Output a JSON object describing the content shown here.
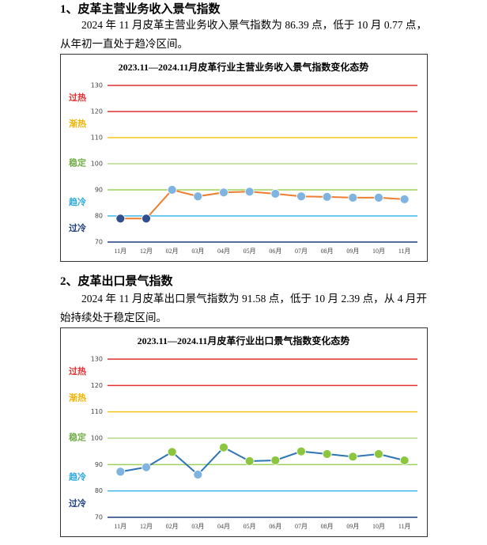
{
  "sections": [
    {
      "heading": "1、皮革主营业务收入景气指数",
      "paragraph": "2024 年 11 月皮革主营业务收入景气指数为 86.39 点，低于 10 月 0.77 点，从年初一直处于趋冷区间。"
    },
    {
      "heading": "2、皮革出口景气指数",
      "paragraph": "2024 年 11 月皮革出口景气指数为 91.58 点，低于 10 月 2.39 点，从 4 月开始持续处于稳定区间。"
    }
  ],
  "chart_data": [
    {
      "type": "line",
      "title": "2023.11—2024.11月皮革行业主营业务收入景气指数变化态势",
      "categories": [
        "11月",
        "12月",
        "02月",
        "03月",
        "04月",
        "05月",
        "06月",
        "07月",
        "08月",
        "09月",
        "10月",
        "11月"
      ],
      "values": [
        79,
        79,
        90,
        87.5,
        89,
        89.3,
        88.5,
        87.5,
        87.3,
        87,
        87,
        86.39
      ],
      "line_color": "#ed7d31",
      "marker_colors": [
        "#2f4f8f",
        "#2f4f8f",
        "#7fb3e0",
        "#7fb3e0",
        "#7fb3e0",
        "#7fb3e0",
        "#7fb3e0",
        "#7fb3e0",
        "#7fb3e0",
        "#7fb3e0",
        "#7fb3e0",
        "#7fb3e0"
      ],
      "ylim": [
        70,
        130
      ],
      "yticks": [
        70,
        80,
        90,
        100,
        110,
        120,
        130
      ],
      "grid_colors": [
        "#1f3f7f",
        "#3fb6e8",
        "#9bd05a",
        "#b5d98a",
        "#f5c518",
        "#e03030",
        "#e03030"
      ],
      "zones": [
        {
          "label": "过热",
          "range": [
            120,
            130
          ],
          "color": "#e03030"
        },
        {
          "label": "渐热",
          "range": [
            110,
            120
          ],
          "color": "#f0b400"
        },
        {
          "label": "稳定",
          "range": [
            90,
            110
          ],
          "color": "#70ad47"
        },
        {
          "label": "趋冷",
          "range": [
            80,
            90
          ],
          "color": "#2aa8e0"
        },
        {
          "label": "过冷",
          "range": [
            70,
            80
          ],
          "color": "#1f3f7f"
        }
      ]
    },
    {
      "type": "line",
      "title": "2023.11—2024.11月皮革行业出口景气指数变化态势",
      "categories": [
        "11月",
        "12月",
        "02月",
        "03月",
        "04月",
        "05月",
        "06月",
        "07月",
        "08月",
        "09月",
        "10月",
        "11月"
      ],
      "values": [
        87.3,
        89,
        94.8,
        86.2,
        96.5,
        91.3,
        91.6,
        95,
        94,
        93,
        94,
        91.58
      ],
      "line_color": "#2e75b6",
      "marker_colors": [
        "#7fb3e0",
        "#7fb3e0",
        "#8cc63f",
        "#7fb3e0",
        "#8cc63f",
        "#8cc63f",
        "#8cc63f",
        "#8cc63f",
        "#8cc63f",
        "#8cc63f",
        "#8cc63f",
        "#8cc63f"
      ],
      "ylim": [
        70,
        130
      ],
      "yticks": [
        70,
        80,
        90,
        100,
        110,
        120,
        130
      ],
      "grid_colors": [
        "#1f3f7f",
        "#3fb6e8",
        "#9bd05a",
        "#b5d98a",
        "#f5c518",
        "#e03030",
        "#e03030"
      ],
      "zones": [
        {
          "label": "过热",
          "range": [
            120,
            130
          ],
          "color": "#e03030"
        },
        {
          "label": "渐热",
          "range": [
            110,
            120
          ],
          "color": "#f0b400"
        },
        {
          "label": "稳定",
          "range": [
            90,
            110
          ],
          "color": "#70ad47"
        },
        {
          "label": "趋冷",
          "range": [
            80,
            90
          ],
          "color": "#2aa8e0"
        },
        {
          "label": "过冷",
          "range": [
            70,
            80
          ],
          "color": "#1f3f7f"
        }
      ]
    }
  ]
}
